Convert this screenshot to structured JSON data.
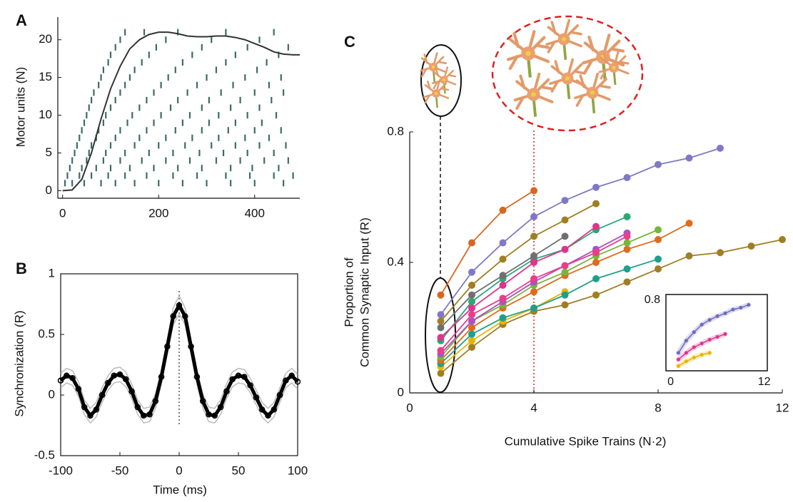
{
  "chart_data": [
    {
      "type": "raster",
      "title": "A",
      "ylabel": "Motor units (N)",
      "xlim": [
        -10,
        494
      ],
      "ylim": [
        -1,
        23
      ],
      "xticks": [
        0,
        200,
        400
      ],
      "yticks": [
        0,
        5,
        10,
        15,
        20
      ],
      "color": "#3d6b66",
      "raster": [
        {
          "unit": 1,
          "times": [
            5,
            20,
            45,
            80,
            110,
            150,
            200,
            250,
            300,
            350,
            400,
            460
          ]
        },
        {
          "unit": 2,
          "times": [
            10,
            35,
            60,
            95,
            130,
            175,
            230,
            280,
            340,
            390,
            440,
            480
          ]
        },
        {
          "unit": 3,
          "times": [
            15,
            40,
            70,
            100,
            140,
            190,
            240,
            290,
            350,
            395,
            450
          ]
        },
        {
          "unit": 4,
          "times": [
            20,
            50,
            85,
            120,
            165,
            215,
            265,
            320,
            370,
            420,
            470
          ]
        },
        {
          "unit": 5,
          "times": [
            25,
            55,
            90,
            130,
            180,
            230,
            285,
            335,
            385,
            440
          ]
        },
        {
          "unit": 6,
          "times": [
            30,
            60,
            100,
            150,
            200,
            255,
            310,
            360,
            410,
            465
          ]
        },
        {
          "unit": 7,
          "times": [
            35,
            70,
            110,
            160,
            215,
            270,
            325,
            380,
            430
          ]
        },
        {
          "unit": 8,
          "times": [
            40,
            75,
            120,
            175,
            235,
            290,
            345,
            400,
            455
          ]
        },
        {
          "unit": 9,
          "times": [
            45,
            85,
            135,
            190,
            250,
            305,
            360,
            415
          ]
        },
        {
          "unit": 10,
          "times": [
            50,
            90,
            145,
            205,
            265,
            325,
            385,
            445
          ]
        },
        {
          "unit": 11,
          "times": [
            55,
            100,
            160,
            225,
            290,
            350,
            410
          ]
        },
        {
          "unit": 12,
          "times": [
            60,
            110,
            175,
            240,
            305,
            370,
            435
          ]
        },
        {
          "unit": 13,
          "times": [
            65,
            120,
            190,
            260,
            330,
            400,
            460
          ]
        },
        {
          "unit": 14,
          "times": [
            75,
            130,
            205,
            280,
            355,
            430
          ]
        },
        {
          "unit": 15,
          "times": [
            80,
            140,
            220,
            300,
            380,
            455
          ]
        },
        {
          "unit": 16,
          "times": [
            85,
            150,
            235,
            320,
            405
          ]
        },
        {
          "unit": 17,
          "times": [
            95,
            165,
            250,
            340,
            425
          ]
        },
        {
          "unit": 18,
          "times": [
            100,
            180,
            270,
            360,
            450
          ]
        },
        {
          "unit": 19,
          "times": [
            110,
            195,
            290,
            385,
            470
          ]
        },
        {
          "unit": 20,
          "times": [
            120,
            215,
            310,
            410
          ]
        },
        {
          "unit": 21,
          "times": [
            130,
            170,
            240,
            340,
            440
          ]
        }
      ],
      "curve": {
        "color": "#333333",
        "x": [
          0,
          20,
          40,
          60,
          80,
          100,
          120,
          140,
          160,
          180,
          200,
          220,
          240,
          260,
          280,
          300,
          320,
          340,
          360,
          380,
          400,
          420,
          440,
          460,
          480,
          494
        ],
        "values": [
          0,
          0.1,
          1.5,
          5,
          9.5,
          13.5,
          16.5,
          18.8,
          20,
          20.7,
          21,
          21,
          20.8,
          20.5,
          20.4,
          20.4,
          20.5,
          20.5,
          20.3,
          20,
          19.5,
          19,
          18.4,
          18.1,
          18,
          18
        ]
      }
    },
    {
      "type": "line",
      "title": "B",
      "xlabel": "Time (ms)",
      "ylabel": "Synchronization (R)",
      "xlim": [
        -100,
        100
      ],
      "ylim": [
        -0.5,
        1
      ],
      "xticks": [
        -100,
        -50,
        0,
        50,
        100
      ],
      "yticks": [
        -0.5,
        0,
        0.5,
        1
      ],
      "x": [
        -100,
        -95,
        -90,
        -85,
        -80,
        -75,
        -70,
        -65,
        -60,
        -55,
        -50,
        -45,
        -40,
        -35,
        -30,
        -25,
        -20,
        -15,
        -10,
        -5,
        0,
        5,
        10,
        15,
        20,
        25,
        30,
        35,
        40,
        45,
        50,
        55,
        60,
        65,
        70,
        75,
        80,
        85,
        90,
        95,
        100
      ],
      "series": [
        {
          "color": "#aaaaaa",
          "values": [
            0.18,
            0.22,
            0.2,
            0.11,
            -0.04,
            -0.11,
            -0.06,
            0.06,
            0.16,
            0.22,
            0.23,
            0.19,
            0.09,
            -0.04,
            -0.11,
            -0.1,
            0.01,
            0.21,
            0.46,
            0.72,
            0.82,
            0.72,
            0.46,
            0.21,
            0.01,
            -0.1,
            -0.11,
            -0.04,
            0.09,
            0.19,
            0.22,
            0.21,
            0.14,
            0.04,
            -0.06,
            -0.11,
            -0.06,
            0.06,
            0.18,
            0.22,
            0.17
          ]
        },
        {
          "color": "#aaaaaa",
          "values": [
            0.06,
            0.1,
            0.08,
            -0.01,
            -0.16,
            -0.23,
            -0.18,
            -0.06,
            0.04,
            0.1,
            0.11,
            0.07,
            -0.03,
            -0.16,
            -0.23,
            -0.22,
            -0.11,
            0.09,
            0.34,
            0.58,
            0.67,
            0.58,
            0.34,
            0.09,
            -0.11,
            -0.22,
            -0.23,
            -0.16,
            -0.03,
            0.07,
            0.1,
            0.09,
            0.02,
            -0.08,
            -0.18,
            -0.23,
            -0.18,
            -0.06,
            0.06,
            0.1,
            0.05
          ]
        },
        {
          "color": "#000000",
          "markers": true,
          "values": [
            0.12,
            0.16,
            0.14,
            0.05,
            -0.1,
            -0.17,
            -0.12,
            0.0,
            0.1,
            0.16,
            0.17,
            0.13,
            0.03,
            -0.1,
            -0.17,
            -0.16,
            -0.05,
            0.15,
            0.4,
            0.65,
            0.74,
            0.65,
            0.4,
            0.15,
            -0.05,
            -0.16,
            -0.17,
            -0.1,
            0.03,
            0.13,
            0.16,
            0.15,
            0.08,
            -0.02,
            -0.12,
            -0.17,
            -0.12,
            0.0,
            0.12,
            0.16,
            0.11
          ]
        }
      ]
    },
    {
      "type": "line",
      "title": "C",
      "xlabel": "Cumulative Spike Trains (N·2)",
      "ylabel": [
        "Proportion of",
        "Common Synaptic Input (R)"
      ],
      "xlim": [
        0,
        12
      ],
      "ylim": [
        0,
        0.8
      ],
      "xticks": [
        0,
        4,
        8,
        12
      ],
      "yticks": [
        0,
        0.4,
        0.8
      ],
      "x": [
        1,
        2,
        3,
        4,
        5,
        6,
        7,
        8,
        9,
        10,
        11,
        12
      ],
      "series": [
        {
          "color": "#a07e22",
          "markers": true,
          "values": [
            0.06,
            0.14,
            0.21,
            0.25,
            0.27,
            0.3,
            0.34,
            0.38,
            0.42,
            0.43,
            0.45,
            0.47
          ]
        },
        {
          "color": "#e8b400",
          "markers": true,
          "values": [
            0.08,
            0.16,
            0.22,
            0.26,
            0.31,
            null,
            null,
            null,
            null,
            null,
            null,
            null
          ]
        },
        {
          "color": "#1f9e8c",
          "markers": true,
          "values": [
            0.09,
            0.18,
            0.23,
            0.26,
            0.3,
            0.35,
            0.38,
            0.41,
            null,
            null,
            null,
            null
          ]
        },
        {
          "color": "#e06a1e",
          "markers": true,
          "values": [
            0.1,
            0.2,
            0.26,
            0.31,
            0.36,
            0.4,
            0.44,
            0.47,
            0.52,
            null,
            null,
            null
          ]
        },
        {
          "color": "#74b83a",
          "markers": true,
          "values": [
            0.11,
            0.22,
            0.27,
            0.33,
            0.37,
            0.42,
            0.46,
            0.5,
            null,
            null,
            null,
            null
          ]
        },
        {
          "color": "#b04fc4",
          "markers": true,
          "values": [
            0.12,
            0.22,
            0.28,
            0.34,
            0.39,
            0.44,
            0.49,
            null,
            null,
            null,
            null,
            null
          ]
        },
        {
          "color": "#e83e8c",
          "markers": true,
          "values": [
            0.13,
            0.24,
            0.29,
            0.35,
            0.39,
            0.43,
            0.48,
            null,
            null,
            null,
            null,
            null
          ]
        },
        {
          "color": "#2aa876",
          "markers": true,
          "values": [
            0.16,
            0.28,
            0.35,
            0.41,
            0.44,
            0.5,
            0.54,
            null,
            null,
            null,
            null,
            null
          ]
        },
        {
          "color": "#e0338c",
          "markers": true,
          "values": [
            0.17,
            0.26,
            0.33,
            0.4,
            0.44,
            0.51,
            null,
            null,
            null,
            null,
            null,
            null
          ]
        },
        {
          "color": "#707070",
          "markers": true,
          "values": [
            0.2,
            0.3,
            0.36,
            0.42,
            0.48,
            null,
            null,
            null,
            null,
            null,
            null,
            null
          ]
        },
        {
          "color": "#a07e22",
          "markers": true,
          "values": [
            0.22,
            0.33,
            0.41,
            0.48,
            0.53,
            0.58,
            null,
            null,
            null,
            null,
            null,
            null
          ]
        },
        {
          "color": "#d9661f",
          "markers": true,
          "values": [
            0.3,
            0.46,
            0.56,
            0.62,
            null,
            null,
            null,
            null,
            null,
            null,
            null,
            null
          ]
        },
        {
          "color": "#7f78c8",
          "markers": true,
          "values": [
            0.24,
            0.37,
            0.46,
            0.54,
            0.59,
            0.63,
            0.66,
            0.7,
            0.72,
            0.75,
            null,
            null
          ]
        }
      ]
    },
    {
      "type": "line",
      "xlim": [
        -0.6,
        12.4
      ],
      "ylim": [
        0.05,
        0.86
      ],
      "xticks": [
        0,
        12
      ],
      "yticks": [
        0.8
      ],
      "x": [
        1,
        2,
        3,
        4,
        5,
        6,
        7,
        8,
        9,
        10
      ],
      "series": [
        {
          "color": "#e8b400",
          "markers": true,
          "values": [
            0.1,
            0.15,
            0.19,
            0.22,
            0.24,
            null,
            null,
            null,
            null,
            null
          ]
        },
        {
          "color": "#e0338c",
          "markers": true,
          "values": [
            0.17,
            0.24,
            0.3,
            0.34,
            0.38,
            0.41,
            0.44,
            null,
            null,
            null
          ]
        },
        {
          "color": "#6f68c0",
          "markers": true,
          "values": [
            0.24,
            0.37,
            0.46,
            0.54,
            0.59,
            0.63,
            0.66,
            0.7,
            0.72,
            0.75
          ]
        }
      ]
    }
  ]
}
